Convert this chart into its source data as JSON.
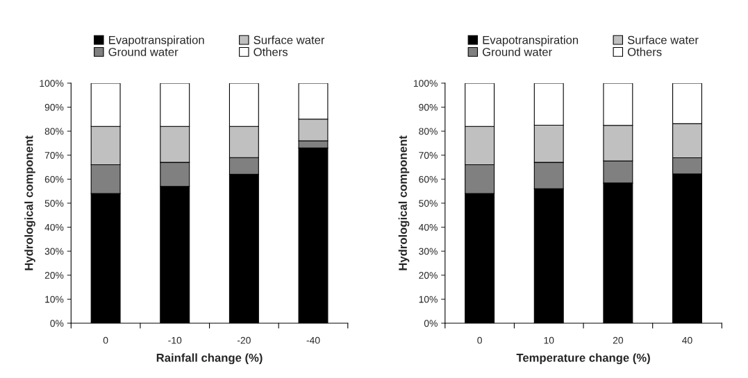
{
  "chart_data": [
    {
      "type": "bar",
      "stacked": true,
      "xlabel": "Rainfall change (%)",
      "ylabel": "Hydrological component",
      "categories": [
        "0",
        "-10",
        "-20",
        "-40"
      ],
      "ylim": [
        0,
        100
      ],
      "yticks": [
        {
          "value": 0,
          "label": "0%"
        },
        {
          "value": 10,
          "label": "10%"
        },
        {
          "value": 20,
          "label": "20%"
        },
        {
          "value": 30,
          "label": "30%"
        },
        {
          "value": 40,
          "label": "40%"
        },
        {
          "value": 50,
          "label": "50%"
        },
        {
          "value": 60,
          "label": "60%"
        },
        {
          "value": 70,
          "label": "70%"
        },
        {
          "value": 80,
          "label": "80%"
        },
        {
          "value": 90,
          "label": "90%"
        },
        {
          "value": 100,
          "label": "100%"
        }
      ],
      "grid": false,
      "legend": "top",
      "series": [
        {
          "name": "Evapotranspiration",
          "color": "#000000",
          "values": [
            54,
            57,
            62,
            73
          ]
        },
        {
          "name": "Ground water",
          "color": "#808080",
          "values": [
            12,
            10,
            7,
            3
          ]
        },
        {
          "name": "Surface water",
          "color": "#c0c0c0",
          "values": [
            16,
            15,
            13,
            9
          ]
        },
        {
          "name": "Others",
          "color": "#ffffff",
          "values": [
            18,
            18,
            18,
            15
          ]
        }
      ]
    },
    {
      "type": "bar",
      "stacked": true,
      "xlabel": "Temperature change (%)",
      "ylabel": "Hydrological component",
      "categories": [
        "0",
        "10",
        "20",
        "40"
      ],
      "ylim": [
        0,
        100
      ],
      "yticks": [
        {
          "value": 0,
          "label": "0%"
        },
        {
          "value": 10,
          "label": "10%"
        },
        {
          "value": 20,
          "label": "20%"
        },
        {
          "value": 30,
          "label": "30%"
        },
        {
          "value": 40,
          "label": "40%"
        },
        {
          "value": 50,
          "label": "50%"
        },
        {
          "value": 60,
          "label": "60%"
        },
        {
          "value": 70,
          "label": "70%"
        },
        {
          "value": 80,
          "label": "80%"
        },
        {
          "value": 90,
          "label": "90%"
        },
        {
          "value": 100,
          "label": "100%"
        }
      ],
      "grid": false,
      "legend": "top",
      "series": [
        {
          "name": "Evapotranspiration",
          "color": "#000000",
          "values": [
            54,
            56,
            58.4,
            62.2
          ]
        },
        {
          "name": "Ground water",
          "color": "#808080",
          "values": [
            12,
            11,
            9.2,
            6.7
          ]
        },
        {
          "name": "Surface water",
          "color": "#c0c0c0",
          "values": [
            16,
            15.5,
            14.8,
            14.2
          ]
        },
        {
          "name": "Others",
          "color": "#ffffff",
          "values": [
            18,
            17.5,
            17.6,
            16.9
          ]
        }
      ]
    }
  ]
}
